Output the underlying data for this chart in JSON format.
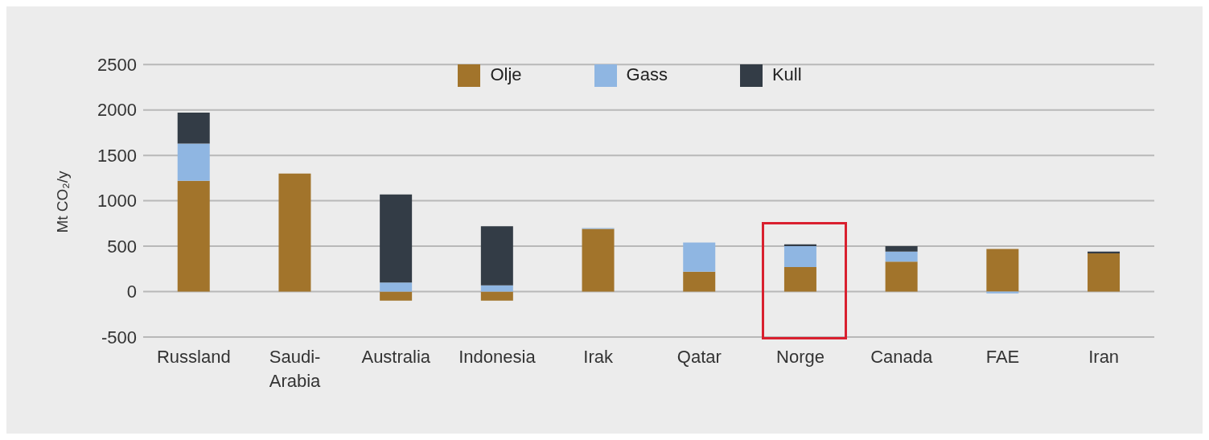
{
  "chart_data": {
    "type": "bar",
    "stacked": true,
    "ylabel": "Mt CO₂/y",
    "categories": [
      "Russland",
      "Saudi-Arabia",
      "Australia",
      "Indonesia",
      "Irak",
      "Qatar",
      "Norge",
      "Canada",
      "FAE",
      "Iran"
    ],
    "series": [
      {
        "name": "Olje",
        "color": "#a2742b",
        "values": [
          1220,
          1300,
          -100,
          -100,
          690,
          220,
          270,
          330,
          470,
          420
        ]
      },
      {
        "name": "Gass",
        "color": "#8fb6e2",
        "values": [
          410,
          0,
          100,
          70,
          10,
          320,
          230,
          110,
          -20,
          0
        ]
      },
      {
        "name": "Kull",
        "color": "#333c46",
        "values": [
          340,
          0,
          970,
          650,
          0,
          0,
          20,
          60,
          0,
          20
        ]
      }
    ],
    "ylim": [
      -500,
      2500
    ],
    "yticks": [
      -500,
      0,
      500,
      1000,
      1500,
      2000,
      2500
    ],
    "grid": "y",
    "legend": "top"
  }
}
